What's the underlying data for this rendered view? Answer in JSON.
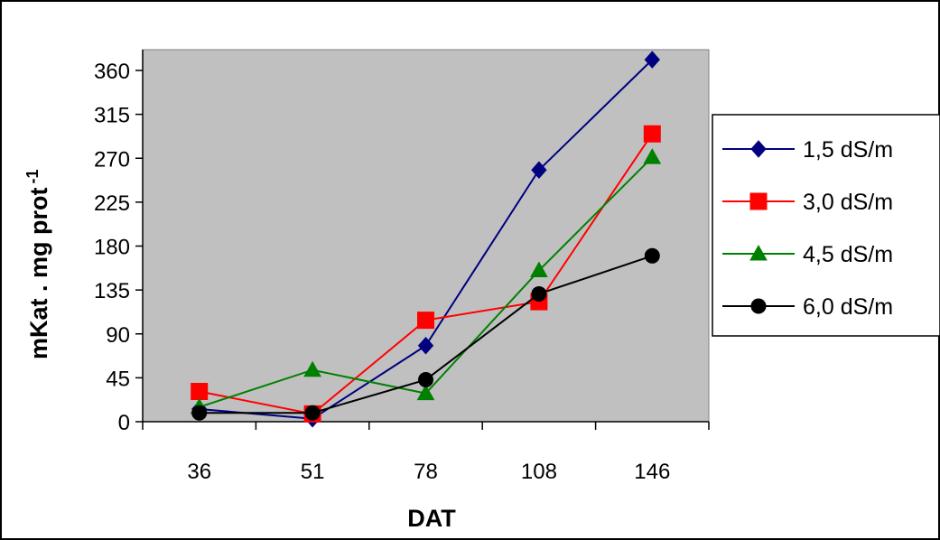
{
  "chart_data": {
    "type": "line",
    "title": "",
    "xlabel": "DAT",
    "ylabel": "mKat . mg prot",
    "ylabel_superscript": "-1",
    "categories": [
      "36",
      "51",
      "78",
      "108",
      "146"
    ],
    "ylim": [
      0,
      360
    ],
    "yticks": [
      "0",
      "45",
      "90",
      "135",
      "180",
      "225",
      "270",
      "315",
      "360"
    ],
    "grid": false,
    "plot_background": "#c0c0c0",
    "legend_position": "right",
    "series": [
      {
        "name": "1,5 dS/m",
        "color": "#000080",
        "marker": "diamond",
        "values": [
          13,
          3,
          78,
          258,
          371
        ]
      },
      {
        "name": "3,0 dS/m",
        "color": "#ff0000",
        "marker": "square",
        "values": [
          31,
          8,
          104,
          123,
          295
        ]
      },
      {
        "name": "4,5 dS/m",
        "color": "#008000",
        "marker": "triangle",
        "values": [
          15,
          53,
          29,
          155,
          271
        ]
      },
      {
        "name": "6,0 dS/m",
        "color": "#000000",
        "marker": "circle",
        "values": [
          9,
          9,
          43,
          131,
          170
        ]
      }
    ]
  }
}
